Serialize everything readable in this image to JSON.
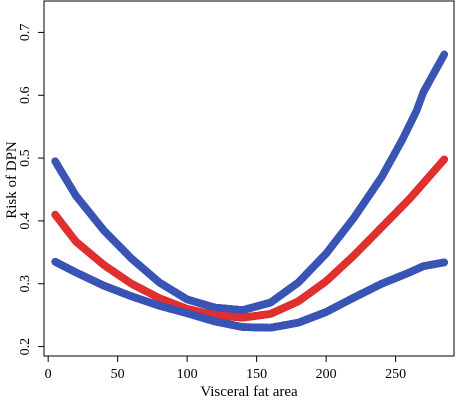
{
  "chart_data": {
    "type": "scatter",
    "title": "",
    "xlabel": "Visceral fat area",
    "ylabel": "Risk of DPN",
    "xlim": [
      -3,
      292
    ],
    "ylim": [
      0.185,
      0.75
    ],
    "x_ticks": [
      0,
      50,
      100,
      150,
      200,
      250
    ],
    "y_ticks": [
      0.2,
      0.3,
      0.4,
      0.5,
      0.6,
      0.7
    ],
    "x_tick_labels": [
      "0",
      "50",
      "100",
      "150",
      "200",
      "250"
    ],
    "y_tick_labels": [
      "0.2",
      "0.3",
      "0.4",
      "0.5",
      "0.6",
      "0.7"
    ],
    "grid": false,
    "legend": "none",
    "series": [
      {
        "role": "upper-ci",
        "color": "#3a55b4",
        "x": [
          5,
          20,
          40,
          60,
          80,
          100,
          120,
          140,
          160,
          180,
          200,
          220,
          240,
          255,
          265,
          270,
          275,
          280,
          285
        ],
        "y": [
          0.495,
          0.44,
          0.385,
          0.34,
          0.302,
          0.275,
          0.262,
          0.258,
          0.27,
          0.302,
          0.348,
          0.405,
          0.47,
          0.53,
          0.575,
          0.605,
          0.625,
          0.645,
          0.665
        ]
      },
      {
        "role": "estimate",
        "color": "#e03030",
        "x": [
          5,
          20,
          40,
          60,
          80,
          100,
          120,
          140,
          160,
          180,
          200,
          220,
          240,
          260,
          285
        ],
        "y": [
          0.41,
          0.367,
          0.33,
          0.3,
          0.277,
          0.26,
          0.25,
          0.246,
          0.252,
          0.272,
          0.304,
          0.345,
          0.39,
          0.435,
          0.498
        ]
      },
      {
        "role": "lower-ci",
        "color": "#3a55b4",
        "x": [
          5,
          20,
          40,
          60,
          80,
          100,
          120,
          140,
          160,
          180,
          200,
          220,
          240,
          260,
          270,
          285
        ],
        "y": [
          0.335,
          0.318,
          0.297,
          0.28,
          0.265,
          0.253,
          0.24,
          0.231,
          0.23,
          0.238,
          0.255,
          0.278,
          0.3,
          0.318,
          0.328,
          0.334
        ]
      }
    ]
  }
}
